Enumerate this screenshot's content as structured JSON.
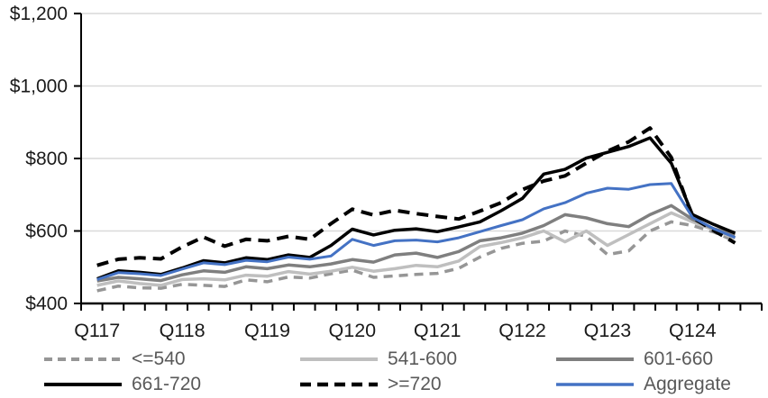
{
  "chart_data": {
    "type": "line",
    "title": "",
    "y_axis": {
      "tick_labels": [
        "$400",
        "$600",
        "$800",
        "$1,000",
        "$1,200"
      ],
      "tick_values": [
        400,
        600,
        800,
        1000,
        1200
      ],
      "ylim": [
        400,
        1200
      ],
      "grid": true
    },
    "x_axis": {
      "tick_labels": [
        "Q117",
        "Q118",
        "Q119",
        "Q120",
        "Q121",
        "Q122",
        "Q123",
        "Q124"
      ],
      "label_point_indices": [
        0,
        4,
        8,
        12,
        16,
        20,
        24,
        28
      ],
      "num_points": 31,
      "num_divisions": 32
    },
    "series": [
      {
        "name": "<=540",
        "color": "#969696",
        "style": "dashed",
        "width": 3.5,
        "values": [
          435,
          448,
          443,
          442,
          453,
          450,
          447,
          465,
          460,
          473,
          470,
          482,
          492,
          472,
          476,
          480,
          483,
          497,
          528,
          552,
          566,
          572,
          600,
          585,
          535,
          545,
          600,
          625,
          615,
          597,
          572
        ]
      },
      {
        "name": "541-600",
        "color": "#BFBFBF",
        "style": "solid",
        "width": 3.5,
        "values": [
          450,
          462,
          455,
          450,
          466,
          468,
          465,
          478,
          475,
          488,
          481,
          489,
          500,
          489,
          496,
          505,
          501,
          517,
          557,
          568,
          581,
          600,
          570,
          600,
          560,
          590,
          620,
          650,
          625,
          603,
          580
        ]
      },
      {
        "name": "601-660",
        "color": "#7F7F7F",
        "style": "solid",
        "width": 3.5,
        "values": [
          462,
          472,
          468,
          463,
          479,
          490,
          486,
          501,
          496,
          506,
          501,
          509,
          521,
          514,
          534,
          539,
          527,
          543,
          573,
          581,
          594,
          615,
          645,
          636,
          620,
          612,
          645,
          670,
          632,
          606,
          590
        ]
      },
      {
        "name": "661-720",
        "color": "#000000",
        "style": "solid",
        "width": 3.5,
        "values": [
          468,
          490,
          486,
          480,
          498,
          518,
          512,
          526,
          521,
          534,
          527,
          560,
          605,
          589,
          602,
          606,
          598,
          611,
          625,
          656,
          690,
          757,
          770,
          801,
          817,
          833,
          857,
          787,
          645,
          618,
          594
        ]
      },
      {
        "name": ">=720",
        "color": "#000000",
        "style": "dashed",
        "width": 4,
        "values": [
          505,
          522,
          526,
          523,
          556,
          583,
          558,
          577,
          573,
          585,
          577,
          620,
          660,
          644,
          657,
          648,
          640,
          633,
          655,
          678,
          714,
          738,
          752,
          787,
          820,
          846,
          884,
          803,
          637,
          601,
          567
        ]
      },
      {
        "name": "Aggregate",
        "color": "#4472C4",
        "style": "solid",
        "width": 3,
        "values": [
          466,
          485,
          482,
          477,
          495,
          512,
          507,
          519,
          515,
          528,
          522,
          531,
          577,
          560,
          573,
          575,
          570,
          581,
          598,
          615,
          631,
          661,
          678,
          704,
          718,
          715,
          728,
          731,
          637,
          606,
          582
        ]
      }
    ],
    "legend": [
      {
        "label": "<=540",
        "series": "<=540"
      },
      {
        "label": "541-600",
        "series": "541-600"
      },
      {
        "label": "601-660",
        "series": "601-660"
      },
      {
        "label": "661-720",
        "series": "661-720"
      },
      {
        "label": ">=720",
        "series": ">=720"
      },
      {
        "label": "Aggregate",
        "series": "Aggregate"
      }
    ],
    "colors": {
      "grid": "#D9D9D9",
      "axis": "#000000",
      "tick_label": "#1a1a1a",
      "legend_text": "#595959",
      "background": "#FFFFFF"
    }
  }
}
